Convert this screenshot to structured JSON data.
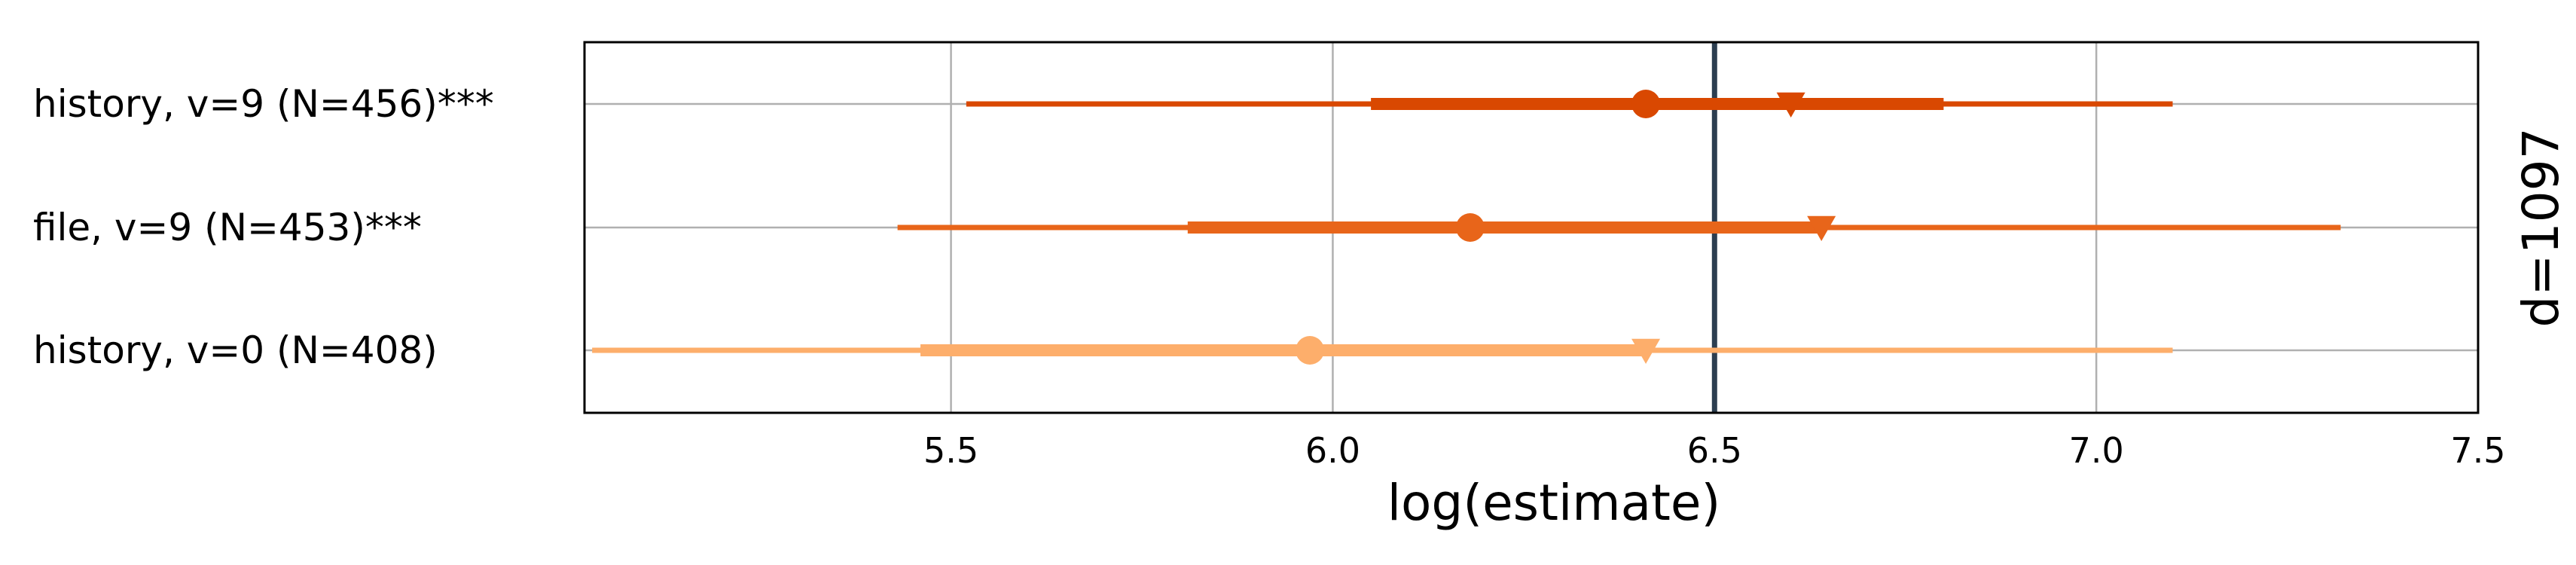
{
  "chart_data": {
    "type": "forest",
    "title": "",
    "xlabel": "log(estimate)",
    "side_label": "d=1097",
    "xlim": [
      5.02,
      7.5
    ],
    "xticks": [
      5.5,
      6.0,
      6.5,
      7.0,
      7.5
    ],
    "xtick_labels": [
      "5.5",
      "6.0",
      "6.5",
      "7.0",
      "7.5"
    ],
    "reference_line": 6.5,
    "reference_color": "#2c3e50",
    "grid": true,
    "rows": [
      {
        "label": "history, v=9 (N=456)***",
        "color": "#d94801",
        "point": 6.41,
        "triangle": 6.6,
        "inner_interval": [
          6.05,
          6.8
        ],
        "outer_interval": [
          5.52,
          7.1
        ]
      },
      {
        "label": "file, v=9 (N=453)***",
        "color": "#e8651a",
        "point": 6.18,
        "triangle": 6.64,
        "inner_interval": [
          5.81,
          6.64
        ],
        "outer_interval": [
          5.43,
          7.32
        ]
      },
      {
        "label": "history, v=0 (N=408)",
        "color": "#fdae6b",
        "point": 5.97,
        "triangle": 6.41,
        "inner_interval": [
          5.46,
          6.41
        ],
        "outer_interval": [
          5.03,
          7.1
        ]
      }
    ]
  }
}
